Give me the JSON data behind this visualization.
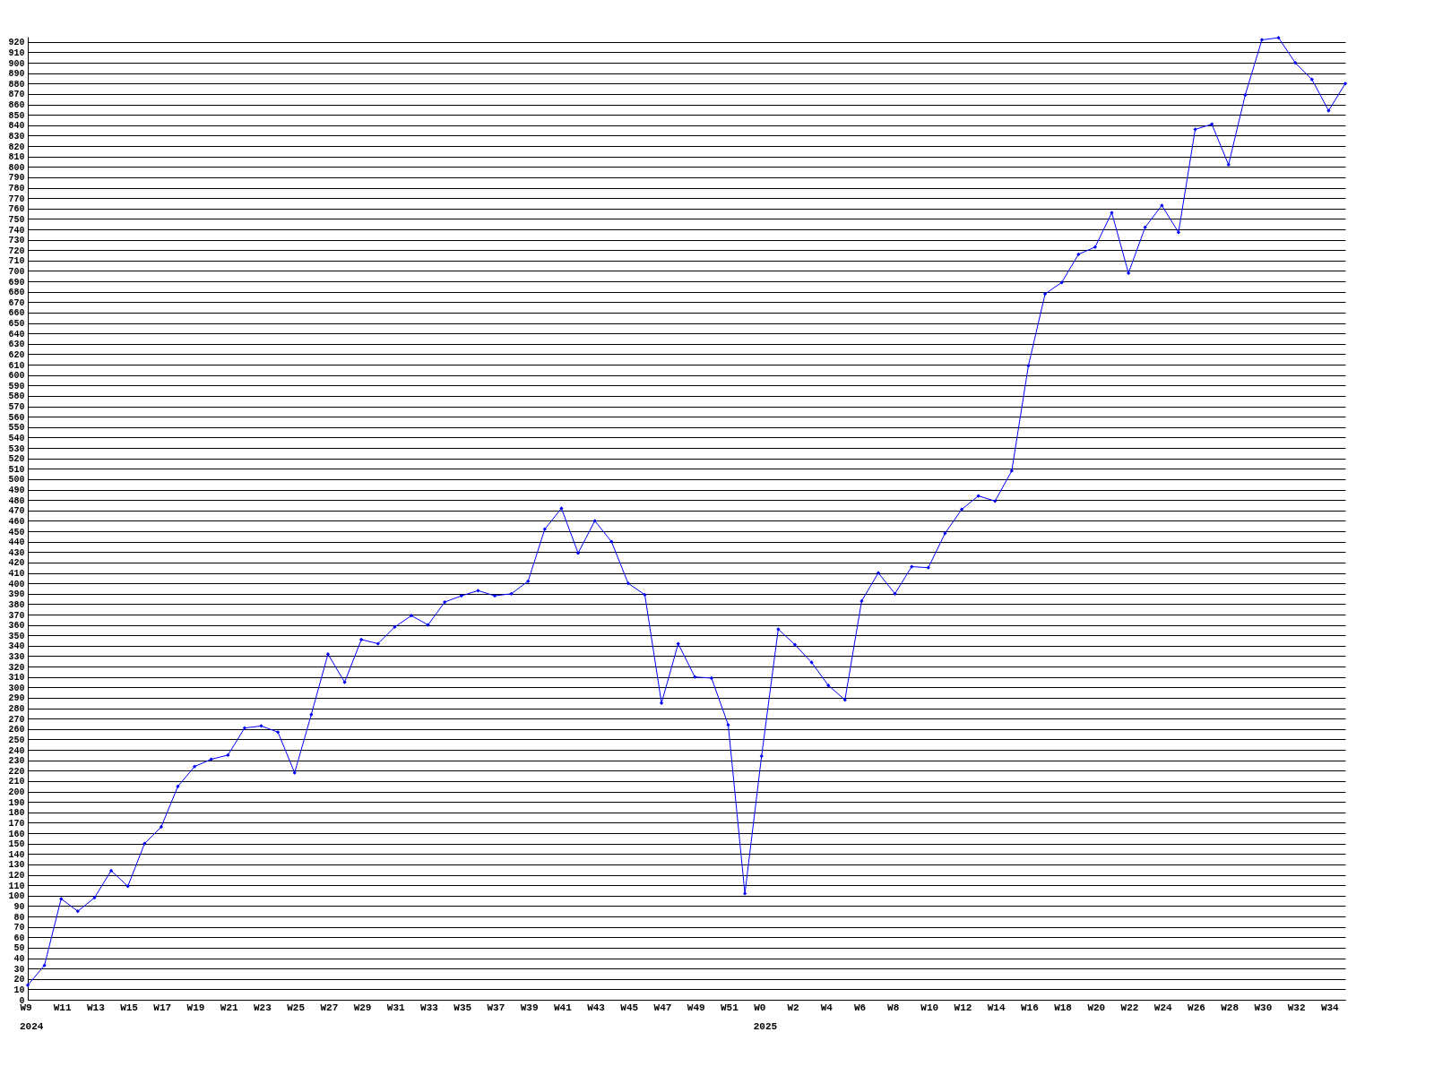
{
  "chart_data": {
    "type": "line",
    "categories": [
      "W9",
      null,
      "W11",
      null,
      "W13",
      null,
      "W15",
      null,
      "W17",
      null,
      "W19",
      null,
      "W21",
      null,
      "W23",
      null,
      "W25",
      null,
      "W27",
      null,
      "W29",
      null,
      "W31",
      null,
      "W33",
      null,
      "W35",
      null,
      "W37",
      null,
      "W39",
      null,
      "W41",
      null,
      "W43",
      null,
      "W45",
      null,
      "W47",
      null,
      "W49",
      null,
      "W51",
      null,
      "W0",
      null,
      "W2",
      null,
      "W4",
      null,
      "W6",
      null,
      "W8",
      null,
      "W10",
      null,
      "W12",
      null,
      "W14",
      null,
      "W16",
      null,
      "W18",
      null,
      "W20",
      null,
      "W22",
      null,
      "W24",
      null,
      "W26",
      null,
      "W28",
      null,
      "W30",
      null,
      "W32",
      null,
      "W34",
      null
    ],
    "series": [
      {
        "color": "#0000ff",
        "values": [
          14,
          33,
          97,
          85,
          98,
          124,
          109,
          150,
          166,
          205,
          224,
          231,
          235,
          261,
          263,
          257,
          218,
          274,
          332,
          305,
          346,
          342,
          358,
          369,
          360,
          382,
          388,
          393,
          388,
          390,
          402,
          452,
          472,
          429,
          460,
          440,
          400,
          389,
          285,
          342,
          310,
          309,
          264,
          102,
          234,
          356,
          341,
          324,
          302,
          288,
          383,
          410,
          390,
          416,
          415,
          448,
          471,
          484,
          479,
          508,
          609,
          678,
          689,
          716,
          723,
          756,
          698,
          742,
          763,
          737,
          836,
          841,
          802,
          869,
          922,
          924,
          900,
          884,
          854,
          880
        ]
      }
    ],
    "ylim": [
      0,
      925
    ],
    "yticks": [
      0,
      10,
      20,
      30,
      40,
      50,
      60,
      70,
      80,
      90,
      100,
      110,
      120,
      130,
      140,
      150,
      160,
      170,
      180,
      190,
      200,
      210,
      220,
      230,
      240,
      250,
      260,
      270,
      280,
      290,
      300,
      310,
      320,
      330,
      340,
      350,
      360,
      370,
      380,
      390,
      400,
      410,
      420,
      430,
      440,
      450,
      460,
      470,
      480,
      490,
      500,
      510,
      520,
      530,
      540,
      550,
      560,
      570,
      580,
      590,
      600,
      610,
      620,
      630,
      640,
      650,
      660,
      670,
      680,
      690,
      700,
      710,
      720,
      730,
      740,
      750,
      760,
      770,
      780,
      790,
      800,
      810,
      820,
      830,
      840,
      850,
      860,
      870,
      880,
      890,
      900,
      910,
      920
    ],
    "grid": "y",
    "marker": "diamond",
    "line_style": "solid",
    "legend": false,
    "annotations": [
      "2024",
      "2025"
    ]
  }
}
